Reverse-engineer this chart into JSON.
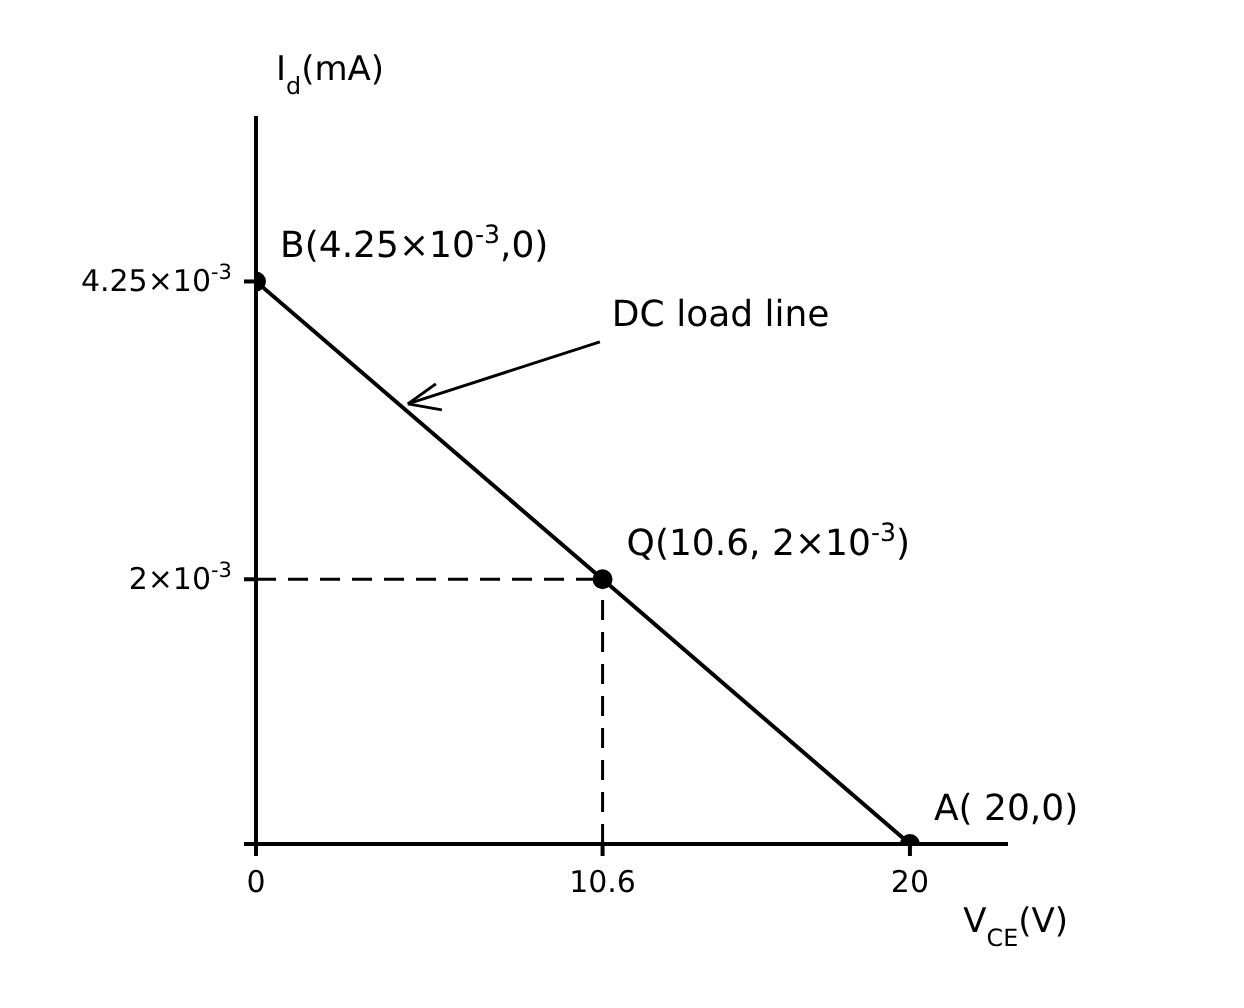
{
  "chart_data": {
    "type": "line",
    "xlabel": "V$_{CE}$(V)",
    "ylabel": "I$_{d}$(mA)",
    "x": [
      0,
      10.6,
      20
    ],
    "series": [
      {
        "color": "#000000",
        "values": [
          0.00425,
          0.002,
          0
        ]
      }
    ],
    "xlim": [
      0,
      23
    ],
    "ylim": [
      0,
      0.0055
    ],
    "xticks": [
      0,
      10.6,
      20
    ],
    "yticks": [
      {
        "value": 0,
        "label": null
      },
      {
        "value": 0.002,
        "label": "2×10$^{-3}$"
      },
      {
        "value": 0.00425,
        "label": "4.25×10$^{-3}$"
      }
    ],
    "ref_lines": [
      {
        "axis": "x",
        "value": 10.6,
        "line_style": "dashed"
      },
      {
        "axis": "y",
        "value": 0.002,
        "line_style": "dashed"
      }
    ],
    "annotations": [
      {
        "text": "B(4.25×10$^{-3}$,0)",
        "x": 0,
        "y": 0.00425
      },
      {
        "text": "Q(10.6, 2×10$^{-3}$)",
        "x": 10.6,
        "y": 0.002
      },
      {
        "text": "A( 20,0)",
        "x": 20,
        "y": 0
      },
      {
        "text": "DC load line",
        "x": 4.4,
        "y": 0.00331
      }
    ],
    "marker": "circle",
    "line_style": "solid",
    "grid": false,
    "legend": false
  }
}
